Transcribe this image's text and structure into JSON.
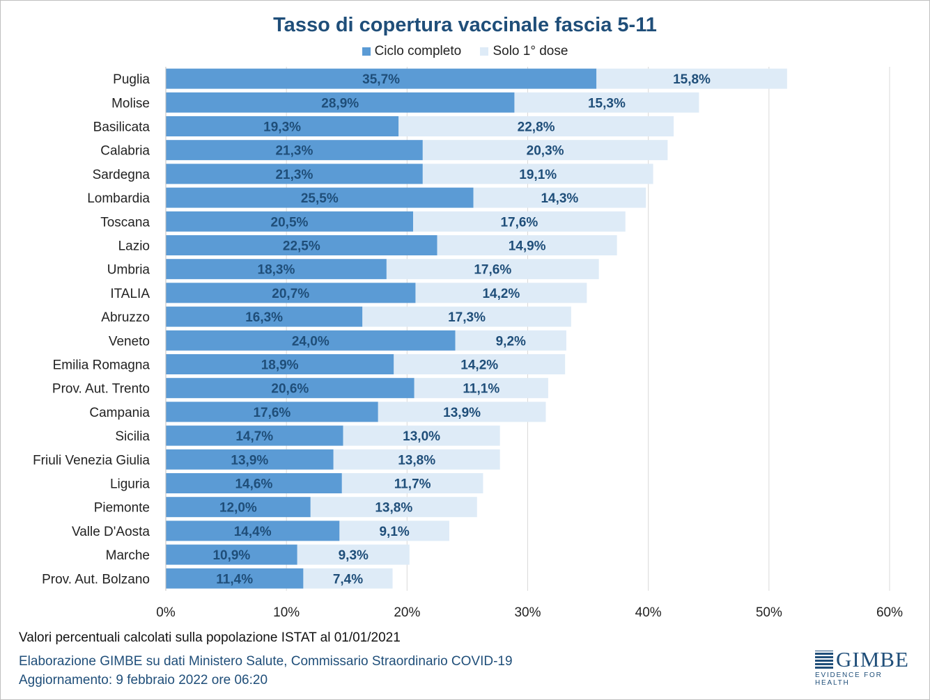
{
  "chart_data": {
    "type": "bar",
    "orientation": "horizontal",
    "stacked": true,
    "title": "Tasso di copertura vaccinale fascia 5-11",
    "categories": [
      "Puglia",
      "Molise",
      "Basilicata",
      "Calabria",
      "Sardegna",
      "Lombardia",
      "Toscana",
      "Lazio",
      "Umbria",
      "ITALIA",
      "Abruzzo",
      "Veneto",
      "Emilia Romagna",
      "Prov. Aut. Trento",
      "Campania",
      "Sicilia",
      "Friuli Venezia Giulia",
      "Liguria",
      "Piemonte",
      "Valle D'Aosta",
      "Marche",
      "Prov. Aut. Bolzano"
    ],
    "series": [
      {
        "name": "Ciclo completo",
        "color": "#5b9bd5",
        "values": [
          35.7,
          28.9,
          19.3,
          21.3,
          21.3,
          25.5,
          20.5,
          22.5,
          18.3,
          20.7,
          16.3,
          24.0,
          18.9,
          20.6,
          17.6,
          14.7,
          13.9,
          14.6,
          12.0,
          14.4,
          10.9,
          11.4
        ]
      },
      {
        "name": "Solo 1° dose",
        "color": "#deebf7",
        "values": [
          15.8,
          15.3,
          22.8,
          20.3,
          19.1,
          14.3,
          17.6,
          14.9,
          17.6,
          14.2,
          17.3,
          9.2,
          14.2,
          11.1,
          13.9,
          13.0,
          13.8,
          11.7,
          13.8,
          9.1,
          9.3,
          7.4
        ]
      }
    ],
    "data_labels": [
      [
        "35,7%",
        "28,9%",
        "19,3%",
        "21,3%",
        "21,3%",
        "25,5%",
        "20,5%",
        "22,5%",
        "18,3%",
        "20,7%",
        "16,3%",
        "24,0%",
        "18,9%",
        "20,6%",
        "17,6%",
        "14,7%",
        "13,9%",
        "14,6%",
        "12,0%",
        "14,4%",
        "10,9%",
        "11,4%"
      ],
      [
        "15,8%",
        "15,3%",
        "22,8%",
        "20,3%",
        "19,1%",
        "14,3%",
        "17,6%",
        "14,9%",
        "17,6%",
        "14,2%",
        "17,3%",
        "9,2%",
        "14,2%",
        "11,1%",
        "13,9%",
        "13,0%",
        "13,8%",
        "11,7%",
        "13,8%",
        "9,1%",
        "9,3%",
        "7,4%"
      ]
    ],
    "xlim": [
      0,
      60
    ],
    "xticks": [
      0,
      10,
      20,
      30,
      40,
      50,
      60
    ],
    "xtick_labels": [
      "0%",
      "10%",
      "20%",
      "30%",
      "40%",
      "50%",
      "60%"
    ],
    "label_color": "#1f4e79",
    "grid": true,
    "legend_position": "top-center"
  },
  "legend": {
    "series1_label": "Ciclo completo",
    "series2_label": "Solo 1° dose",
    "series1_color": "#5b9bd5",
    "series2_color": "#deebf7"
  },
  "notes": {
    "population": "Valori percentuali calcolati sulla popolazione ISTAT al 01/01/2021",
    "source": "Elaborazione GIMBE su dati Ministero Salute, Commissario Straordinario COVID-19",
    "updated": "Aggiornamento: 9 febbraio 2022 ore 06:20"
  },
  "logo": {
    "name": "GIMBE",
    "tagline": "EVIDENCE FOR HEALTH"
  }
}
